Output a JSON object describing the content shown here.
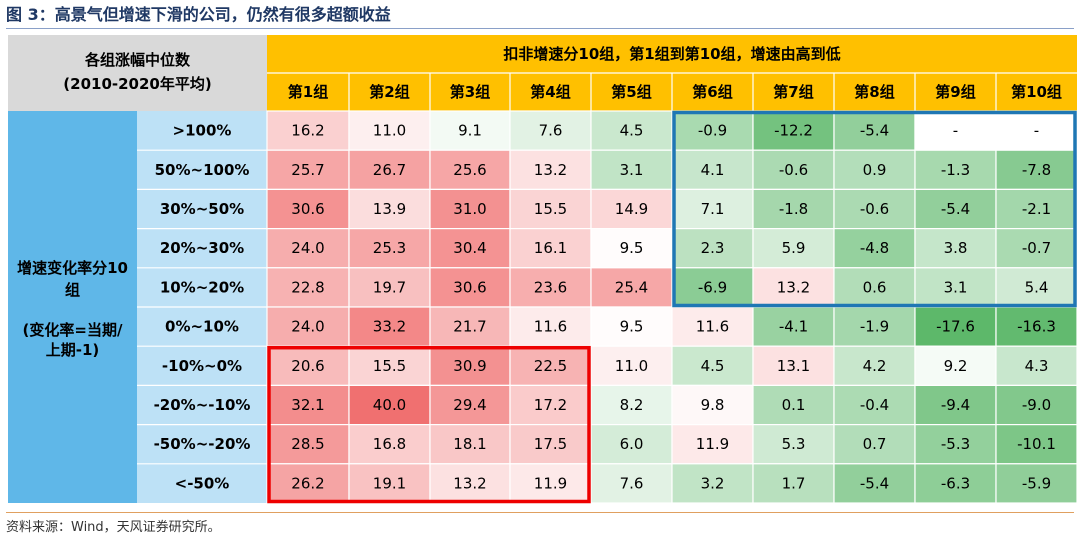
{
  "title": "图 3：高景气但增速下滑的公司，仍然有很多超额收益",
  "source": "资料来源：Wind，天风证券研究所。",
  "colors": {
    "header_gray": "#d9d9d9",
    "header_orange": "#ffc000",
    "rowlabel_blue": "#5fb7e8",
    "rowlabel_light": "#bde1f6",
    "positive_max": "#f07070",
    "negative_max": "#5db86a",
    "blue_frame": "#1f77b4",
    "red_frame": "#ee0000"
  },
  "chart_data": {
    "type": "heatmap",
    "corner_label": [
      "各组涨幅中位数",
      "(2010-2020年平均)"
    ],
    "column_group_label": "扣非增速分10组，第1组到第10组，增速由高到低",
    "columns": [
      "第1组",
      "第2组",
      "第3组",
      "第4组",
      "第5组",
      "第6组",
      "第7组",
      "第8组",
      "第9组",
      "第10组"
    ],
    "row_group_label": [
      "增速变化率分10",
      "组",
      "",
      "(变化率=当期/",
      "上期-1)"
    ],
    "rows": [
      ">100%",
      "50%~100%",
      "30%~50%",
      "20%~30%",
      "10%~20%",
      "0%~10%",
      "-10%~0%",
      "-20%~-10%",
      "-50%~-20%",
      "<-50%"
    ],
    "values": [
      [
        "16.2",
        "11.0",
        "9.1",
        "7.6",
        "4.5",
        "-0.9",
        "-12.2",
        "-5.4",
        "-",
        "-"
      ],
      [
        "25.7",
        "26.7",
        "25.6",
        "13.2",
        "3.1",
        "4.1",
        "-0.6",
        "0.9",
        "-1.3",
        "-7.8"
      ],
      [
        "30.6",
        "13.9",
        "31.0",
        "15.5",
        "14.9",
        "7.1",
        "-1.8",
        "-0.6",
        "-5.4",
        "-2.1"
      ],
      [
        "24.0",
        "25.3",
        "30.4",
        "16.1",
        "9.5",
        "2.3",
        "5.9",
        "-4.8",
        "3.8",
        "-0.7"
      ],
      [
        "22.8",
        "19.7",
        "30.6",
        "23.6",
        "25.4",
        "-6.9",
        "13.2",
        "0.6",
        "3.1",
        "5.4"
      ],
      [
        "24.0",
        "33.2",
        "21.7",
        "11.6",
        "9.5",
        "11.6",
        "-4.1",
        "-1.9",
        "-17.6",
        "-16.3"
      ],
      [
        "20.6",
        "15.5",
        "30.9",
        "22.5",
        "11.0",
        "4.5",
        "13.1",
        "4.2",
        "9.2",
        "4.3"
      ],
      [
        "32.1",
        "40.0",
        "29.4",
        "17.2",
        "8.2",
        "9.8",
        "0.1",
        "-0.4",
        "-9.4",
        "-9.0"
      ],
      [
        "28.5",
        "16.8",
        "18.1",
        "17.5",
        "6.0",
        "11.9",
        "5.3",
        "0.7",
        "-5.3",
        "-10.1"
      ],
      [
        "26.2",
        "19.1",
        "13.2",
        "11.9",
        "7.6",
        "3.2",
        "1.7",
        "-5.4",
        "-6.3",
        "-5.9"
      ]
    ],
    "highlight_boxes": [
      {
        "color": "blue",
        "rows": [
          0,
          4
        ],
        "cols": [
          5,
          9
        ]
      },
      {
        "color": "red",
        "rows": [
          6,
          9
        ],
        "cols": [
          0,
          3
        ]
      }
    ]
  }
}
